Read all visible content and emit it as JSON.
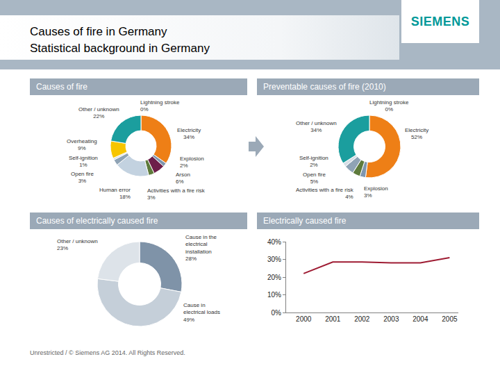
{
  "title": "Causes of fire in Germany",
  "subtitle": "Statistical background in Germany",
  "logo": "SIEMENS",
  "footer": "Unrestricted / © Siemens AG 2014. All Rights Reserved.",
  "chart_data": [
    {
      "type": "donut",
      "title": "Causes of fire",
      "categories": [
        "Lightning stroke",
        "Electricity",
        "Explosion",
        "Arson",
        "Activities with a fire risk",
        "Human error",
        "Open fire",
        "Self-ignition",
        "Overheating",
        "Other / unknown"
      ],
      "values": [
        0,
        34,
        2,
        6,
        3,
        18,
        3,
        1,
        9,
        22
      ],
      "value_labels": [
        "0%",
        "34%",
        "2%",
        "6%",
        "3%",
        "18%",
        "3%",
        "1%",
        "9%",
        "22%"
      ],
      "colors": [
        "#9e9e9e",
        "#ee7f16",
        "#7f96ae",
        "#6d1f4a",
        "#5e7b3c",
        "#c3d2e0",
        "#8fa3b5",
        "#d6dee6",
        "#f7c500",
        "#1b9e9e"
      ],
      "data_labels": true
    },
    {
      "type": "donut",
      "title": "Preventable causes of fire (2010)",
      "categories": [
        "Lightning stroke",
        "Electricity",
        "Explosion",
        "Activities with a fire risk",
        "Open fire",
        "Self-ignition",
        "Other / unknown"
      ],
      "values": [
        0,
        52,
        3,
        4,
        5,
        2,
        34
      ],
      "value_labels": [
        "0%",
        "52%",
        "3%",
        "4%",
        "5%",
        "2%",
        "34%"
      ],
      "colors": [
        "#9e9e9e",
        "#ee7f16",
        "#7f96ae",
        "#5e7b3c",
        "#8fa3b5",
        "#d6dee6",
        "#1b9e9e"
      ],
      "data_labels": true
    },
    {
      "type": "donut",
      "title": "Causes of electrically caused fire",
      "categories": [
        "Cause in the electrical installation",
        "Cause in electrical loads",
        "Other / unknown"
      ],
      "values": [
        28,
        49,
        23
      ],
      "value_labels": [
        "28%",
        "49%",
        "23%"
      ],
      "colors": [
        "#7f93a8",
        "#c5cfd9",
        "#dde3e9"
      ],
      "data_labels": true
    },
    {
      "type": "line",
      "title": "Electrically caused fire",
      "x": [
        2000,
        2001,
        2002,
        2003,
        2004,
        2005
      ],
      "values": [
        22,
        28.5,
        28.5,
        28,
        28,
        31
      ],
      "color": "#9e1b32",
      "xlim": [
        1999.4,
        2005.3
      ],
      "xticks": [
        2000,
        2001,
        2002,
        2003,
        2004,
        2005
      ],
      "ylim": [
        0,
        40
      ],
      "yticks": [
        {
          "value": 0,
          "label": "0%"
        },
        {
          "value": 10,
          "label": "10%"
        },
        {
          "value": 20,
          "label": "20%"
        },
        {
          "value": 30,
          "label": "30%"
        },
        {
          "value": 40,
          "label": "40%"
        }
      ],
      "grid": false
    }
  ]
}
